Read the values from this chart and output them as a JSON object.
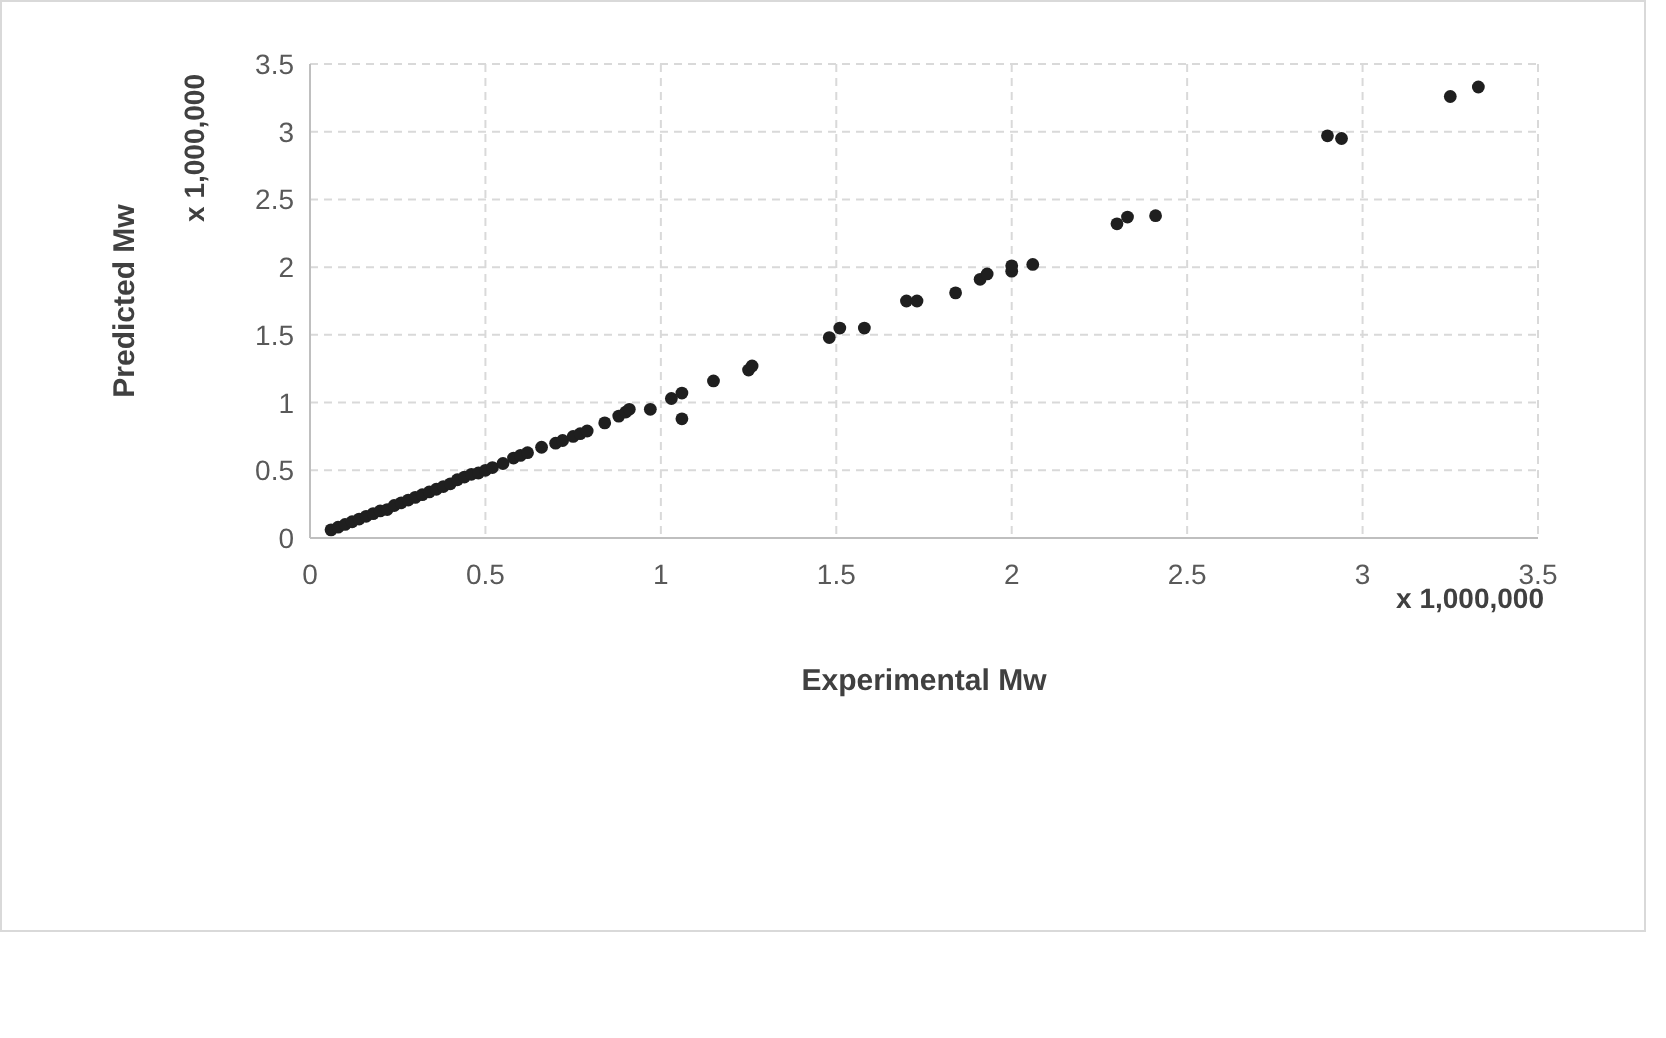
{
  "chart_data": {
    "type": "scatter",
    "xlabel": "Experimental Mw",
    "ylabel": "Predicted Mw",
    "annotations": [
      "x 1,000,000",
      "x 1,000,000"
    ],
    "xlim": [
      0,
      3.5
    ],
    "xticks": [
      0,
      0.5,
      1,
      1.5,
      2,
      2.5,
      3,
      3.5
    ],
    "ylim": [
      0,
      3.5
    ],
    "yticks": [
      0,
      0.5,
      1,
      1.5,
      2,
      2.5,
      3,
      3.5
    ],
    "grid": true,
    "marker": "circle",
    "series": [
      {
        "color": "#1f1f1f",
        "x": [
          0.06,
          0.08,
          0.1,
          0.12,
          0.14,
          0.16,
          0.18,
          0.2,
          0.22,
          0.24,
          0.26,
          0.28,
          0.3,
          0.32,
          0.34,
          0.36,
          0.38,
          0.4,
          0.42,
          0.44,
          0.46,
          0.48,
          0.5,
          0.52,
          0.55,
          0.58,
          0.6,
          0.62,
          0.66,
          0.7,
          0.72,
          0.75,
          0.77,
          0.79,
          0.84,
          0.88,
          0.9,
          0.91,
          0.97,
          1.03,
          1.06,
          1.06,
          1.15,
          1.25,
          1.26,
          1.48,
          1.51,
          1.58,
          1.7,
          1.73,
          1.84,
          1.91,
          1.93,
          2.0,
          2.0,
          2.06,
          2.3,
          2.33,
          2.41,
          2.9,
          2.94,
          3.25,
          3.33
        ],
        "values": [
          0.06,
          0.08,
          0.1,
          0.12,
          0.14,
          0.16,
          0.18,
          0.2,
          0.21,
          0.24,
          0.26,
          0.28,
          0.3,
          0.32,
          0.34,
          0.36,
          0.38,
          0.4,
          0.43,
          0.45,
          0.47,
          0.48,
          0.5,
          0.52,
          0.55,
          0.59,
          0.61,
          0.63,
          0.67,
          0.7,
          0.72,
          0.75,
          0.77,
          0.79,
          0.85,
          0.9,
          0.93,
          0.95,
          0.95,
          1.03,
          1.07,
          0.88,
          1.16,
          1.24,
          1.27,
          1.48,
          1.55,
          1.55,
          1.75,
          1.75,
          1.81,
          1.91,
          1.95,
          1.97,
          2.01,
          2.02,
          2.32,
          2.37,
          2.38,
          2.97,
          2.95,
          3.26,
          3.33
        ]
      }
    ]
  }
}
